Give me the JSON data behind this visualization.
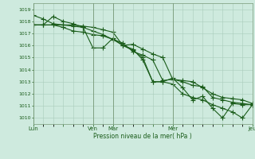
{
  "xlabel": "Pression niveau de la mer( hPa )",
  "ylim": [
    1009.5,
    1019.5
  ],
  "yticks": [
    1010,
    1011,
    1012,
    1013,
    1014,
    1015,
    1016,
    1017,
    1018,
    1019
  ],
  "bg_color": "#ceeade",
  "grid_color": "#aaccbb",
  "line_color": "#1a5c1a",
  "xtick_labels": [
    "Lun",
    "",
    "Ven",
    "Mar",
    "",
    "Mer",
    "",
    "Jeu"
  ],
  "xtick_positions": [
    0,
    3,
    6,
    8,
    12,
    14,
    19,
    22
  ],
  "vlines": [
    0,
    6,
    8,
    14,
    22
  ],
  "series1": [
    1018.5,
    1018.2,
    1017.8,
    1017.7,
    1017.7,
    1017.6,
    1017.5,
    1017.3,
    1017.1,
    1016.0,
    1015.6,
    1015.0,
    1013.0,
    1013.0,
    1012.8,
    1012.0,
    1011.7,
    1011.5,
    1011.1,
    1010.8,
    1010.5,
    1010.0,
    1011.1
  ],
  "series2": [
    1017.7,
    1017.7,
    1017.7,
    1017.7,
    1017.6,
    1017.5,
    1017.2,
    1016.9,
    1016.5,
    1016.0,
    1016.1,
    1015.7,
    1015.3,
    1015.0,
    1013.2,
    1013.1,
    1013.0,
    1012.5,
    1012.0,
    1011.7,
    1011.6,
    1011.5,
    1011.2
  ],
  "series3": [
    1017.7,
    1017.7,
    1018.4,
    1018.0,
    1017.8,
    1017.5,
    1015.8,
    1015.8,
    1016.6,
    1016.0,
    1015.7,
    1014.8,
    1013.0,
    1013.0,
    1013.3,
    1012.5,
    1011.5,
    1011.8,
    1010.8,
    1010.0,
    1011.2,
    1011.1,
    1011.1
  ],
  "series4": [
    1017.7,
    1017.7,
    1017.7,
    1017.5,
    1017.2,
    1017.1,
    1016.9,
    1016.8,
    1016.5,
    1016.2,
    1015.5,
    1015.2,
    1014.8,
    1013.1,
    1013.2,
    1013.0,
    1012.7,
    1012.6,
    1011.7,
    1011.5,
    1011.3,
    1011.2,
    1011.1
  ]
}
